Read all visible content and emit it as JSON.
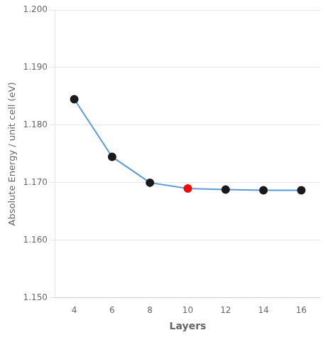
{
  "chart_data": {
    "type": "line",
    "xlabel": "Layers",
    "ylabel": "Absolute Energy / unit cell (eV)",
    "x": [
      4,
      6,
      8,
      10,
      12,
      14,
      16
    ],
    "series": [
      {
        "values": [
          1.1845,
          1.1745,
          1.17,
          1.169,
          1.1688,
          1.1687,
          1.1687
        ],
        "color": "#5B9BD5",
        "colors": [
          "#1a1a1a",
          "#1a1a1a",
          "#1a1a1a",
          "#FF0000",
          "#1a1a1a",
          "#1a1a1a",
          "#1a1a1a"
        ],
        "marker": "circle"
      }
    ],
    "xlim": [
      3.0,
      17.0
    ],
    "xticks": [
      4,
      6,
      8,
      10,
      12,
      14,
      16
    ],
    "ylim": [
      1.15,
      1.2
    ],
    "yticks": [
      {
        "value": 1.15,
        "label": "1.150"
      },
      {
        "value": 1.16,
        "label": "1.160"
      },
      {
        "value": 1.17,
        "label": "1.170"
      },
      {
        "value": 1.18,
        "label": "1.180"
      },
      {
        "value": 1.19,
        "label": "1.190"
      },
      {
        "value": 1.2,
        "label": "1.200"
      }
    ],
    "grid": "y"
  }
}
